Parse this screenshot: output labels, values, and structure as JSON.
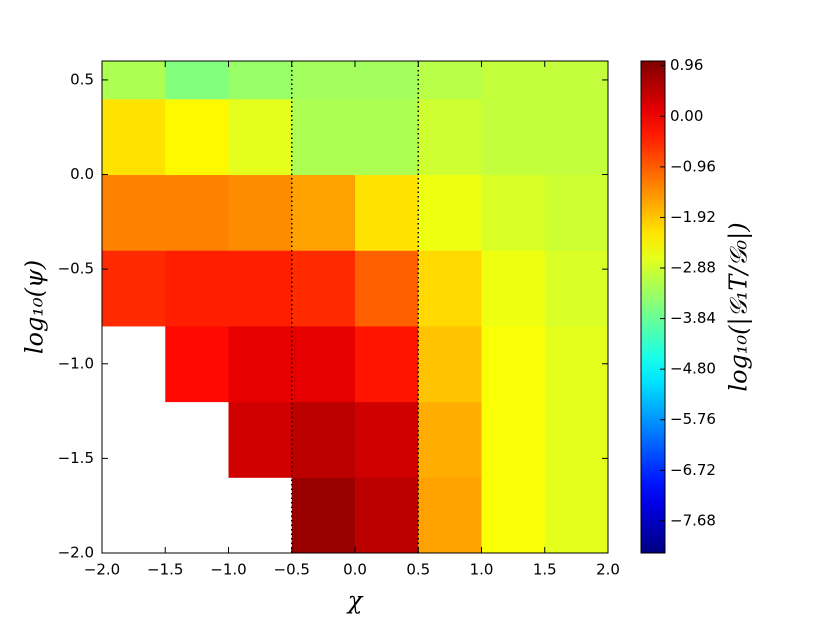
{
  "chart_data": {
    "type": "heatmap",
    "x_label": "χ",
    "y_label": "log₁₀(ψ)",
    "colorbar_label": "log₁₀(|𝒢₁T/𝒢₀|)",
    "colormap": "jet",
    "clim": [
      -8.29,
      1.05
    ],
    "x_edges": [
      -2,
      -1.5,
      -1,
      -0.5,
      0,
      0.5,
      1,
      1.5,
      2
    ],
    "y_edges": [
      -2,
      -1.6,
      -1.2,
      -0.8,
      -0.4,
      0,
      0.4,
      0.6
    ],
    "values": [
      [
        null,
        null,
        null,
        0.8,
        0.5,
        -1.6,
        -2.5,
        -2.7
      ],
      [
        null,
        null,
        0.3,
        0.5,
        0.3,
        -1.7,
        -2.5,
        -2.7
      ],
      [
        null,
        -0.2,
        0.1,
        0.1,
        -0.3,
        -1.9,
        -2.5,
        -2.7
      ],
      [
        -0.5,
        -0.4,
        -0.4,
        -0.5,
        -1.0,
        -2.1,
        -2.6,
        -2.8
      ],
      [
        -1.3,
        -1.3,
        -1.4,
        -1.6,
        -2.2,
        -2.6,
        -2.8,
        -2.9
      ],
      [
        -2.2,
        -2.4,
        -2.7,
        -3.2,
        -3.2,
        -2.9,
        -3.0,
        -3.0
      ],
      [
        -3.2,
        -3.6,
        -3.4,
        -3.3,
        -3.3,
        -3.1,
        -3.0,
        -3.0
      ]
    ],
    "vlines": [
      -0.5,
      0.5
    ],
    "xlim": [
      -2,
      2
    ],
    "ylim": [
      -2,
      0.6
    ],
    "xticks": [
      {
        "value": -2,
        "label": "−2.0"
      },
      {
        "value": -1.5,
        "label": "−1.5"
      },
      {
        "value": -1,
        "label": "−1.0"
      },
      {
        "value": -0.5,
        "label": "−0.5"
      },
      {
        "value": 0,
        "label": "0.0"
      },
      0.5,
      {
        "value": 1,
        "label": "1.0"
      },
      1.5,
      {
        "value": 2,
        "label": "2.0"
      }
    ],
    "yticks": [
      0.5,
      {
        "value": 0,
        "label": "0.0"
      },
      {
        "value": -0.5,
        "label": "−0.5"
      },
      {
        "value": -1,
        "label": "−1.0"
      },
      {
        "value": -1.5,
        "label": "−1.5"
      },
      {
        "value": -2,
        "label": "−2.0"
      }
    ],
    "cticks": [
      {
        "value": 0.96,
        "label": "0.96"
      },
      {
        "value": 0,
        "label": "0.00"
      },
      {
        "value": -0.96,
        "label": "−0.96"
      },
      {
        "value": -1.92,
        "label": "−1.92"
      },
      {
        "value": -2.88,
        "label": "−2.88"
      },
      {
        "value": -3.84,
        "label": "−3.84"
      },
      {
        "value": -4.8,
        "label": "−4.80"
      },
      {
        "value": -5.76,
        "label": "−5.76"
      },
      {
        "value": -6.72,
        "label": "−6.72"
      },
      {
        "value": -7.68,
        "label": "−7.68"
      }
    ]
  }
}
